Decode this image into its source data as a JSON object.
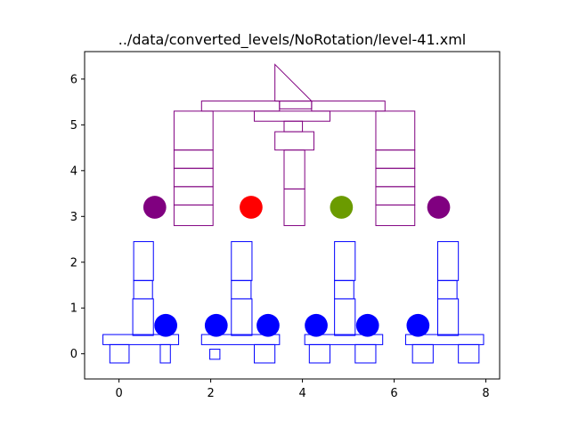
{
  "chart_data": {
    "type": "scatter",
    "title": "../data/converted_levels/NoRotation/level-41.xml",
    "xlabel": "",
    "ylabel": "",
    "xlim": [
      -0.75,
      8.3
    ],
    "ylim": [
      -0.55,
      6.6
    ],
    "grid": false,
    "x_ticks": [
      0,
      2,
      4,
      6,
      8
    ],
    "y_ticks": [
      0,
      1,
      2,
      3,
      4,
      5,
      6
    ],
    "colors": {
      "structure_top": "#800080",
      "structure_bottom": "#0000ff",
      "pig_purple": "#800080",
      "pig_red": "#ff0000",
      "pig_green": "#6b9b00",
      "pig_blue": "#0000ff"
    },
    "rectangles": [
      {
        "x": [
          1.2,
          2.05
        ],
        "y": [
          2.8,
          3.25
        ],
        "color": "purple"
      },
      {
        "x": [
          1.2,
          2.05
        ],
        "y": [
          3.25,
          3.65
        ],
        "color": "purple"
      },
      {
        "x": [
          1.2,
          2.05
        ],
        "y": [
          3.65,
          4.05
        ],
        "color": "purple"
      },
      {
        "x": [
          1.2,
          2.05
        ],
        "y": [
          4.05,
          4.45
        ],
        "color": "purple"
      },
      {
        "x": [
          1.2,
          2.05
        ],
        "y": [
          4.45,
          5.3
        ],
        "color": "purple"
      },
      {
        "x": [
          5.6,
          6.45
        ],
        "y": [
          2.8,
          3.25
        ],
        "color": "purple"
      },
      {
        "x": [
          5.6,
          6.45
        ],
        "y": [
          3.25,
          3.65
        ],
        "color": "purple"
      },
      {
        "x": [
          5.6,
          6.45
        ],
        "y": [
          3.65,
          4.05
        ],
        "color": "purple"
      },
      {
        "x": [
          5.6,
          6.45
        ],
        "y": [
          4.05,
          4.45
        ],
        "color": "purple"
      },
      {
        "x": [
          5.6,
          6.45
        ],
        "y": [
          4.45,
          5.3
        ],
        "color": "purple"
      },
      {
        "x": [
          1.8,
          3.5
        ],
        "y": [
          5.3,
          5.52
        ],
        "color": "purple"
      },
      {
        "x": [
          4.2,
          5.8
        ],
        "y": [
          5.3,
          5.52
        ],
        "color": "purple"
      },
      {
        "x": [
          3.5,
          4.2
        ],
        "y": [
          5.35,
          5.52
        ],
        "color": "purple"
      },
      {
        "x": [
          2.95,
          4.6
        ],
        "y": [
          5.08,
          5.3
        ],
        "color": "purple"
      },
      {
        "x": [
          3.6,
          4.0
        ],
        "y": [
          4.85,
          5.08
        ],
        "color": "purple"
      },
      {
        "x": [
          3.4,
          4.25
        ],
        "y": [
          4.45,
          4.85
        ],
        "color": "purple"
      },
      {
        "x": [
          3.6,
          4.05
        ],
        "y": [
          3.6,
          4.45
        ],
        "color": "purple"
      },
      {
        "x": [
          3.6,
          4.05
        ],
        "y": [
          2.8,
          3.6
        ],
        "color": "purple"
      },
      {
        "x": [
          -0.35,
          1.3
        ],
        "y": [
          0.2,
          0.42
        ],
        "color": "blue"
      },
      {
        "x": [
          -0.2,
          0.22
        ],
        "y": [
          -0.2,
          0.2
        ],
        "color": "blue"
      },
      {
        "x": [
          0.9,
          1.12
        ],
        "y": [
          -0.2,
          0.2
        ],
        "color": "blue"
      },
      {
        "x": [
          0.3,
          0.75
        ],
        "y": [
          0.4,
          1.2
        ],
        "color": "blue"
      },
      {
        "x": [
          0.32,
          0.73
        ],
        "y": [
          1.2,
          1.6
        ],
        "color": "blue"
      },
      {
        "x": [
          0.32,
          0.75
        ],
        "y": [
          1.6,
          2.45
        ],
        "color": "blue"
      },
      {
        "x": [
          1.8,
          3.5
        ],
        "y": [
          0.2,
          0.42
        ],
        "color": "blue"
      },
      {
        "x": [
          1.98,
          2.2
        ],
        "y": [
          -0.12,
          0.1
        ],
        "color": "blue"
      },
      {
        "x": [
          2.95,
          3.4
        ],
        "y": [
          -0.2,
          0.2
        ],
        "color": "blue"
      },
      {
        "x": [
          2.45,
          2.9
        ],
        "y": [
          0.4,
          1.2
        ],
        "color": "blue"
      },
      {
        "x": [
          2.45,
          2.88
        ],
        "y": [
          1.2,
          1.6
        ],
        "color": "blue"
      },
      {
        "x": [
          2.45,
          2.9
        ],
        "y": [
          1.6,
          2.45
        ],
        "color": "blue"
      },
      {
        "x": [
          4.05,
          5.75
        ],
        "y": [
          0.2,
          0.42
        ],
        "color": "blue"
      },
      {
        "x": [
          4.15,
          4.6
        ],
        "y": [
          -0.2,
          0.2
        ],
        "color": "blue"
      },
      {
        "x": [
          5.15,
          5.6
        ],
        "y": [
          -0.2,
          0.2
        ],
        "color": "blue"
      },
      {
        "x": [
          4.7,
          5.15
        ],
        "y": [
          0.4,
          1.2
        ],
        "color": "blue"
      },
      {
        "x": [
          4.7,
          5.12
        ],
        "y": [
          1.2,
          1.6
        ],
        "color": "blue"
      },
      {
        "x": [
          4.7,
          5.15
        ],
        "y": [
          1.6,
          2.45
        ],
        "color": "blue"
      },
      {
        "x": [
          6.25,
          7.95
        ],
        "y": [
          0.2,
          0.42
        ],
        "color": "blue"
      },
      {
        "x": [
          6.4,
          6.85
        ],
        "y": [
          -0.2,
          0.2
        ],
        "color": "blue"
      },
      {
        "x": [
          7.4,
          7.85
        ],
        "y": [
          -0.2,
          0.2
        ],
        "color": "blue"
      },
      {
        "x": [
          6.95,
          7.4
        ],
        "y": [
          0.4,
          1.2
        ],
        "color": "blue"
      },
      {
        "x": [
          6.95,
          7.37
        ],
        "y": [
          1.2,
          1.6
        ],
        "color": "blue"
      },
      {
        "x": [
          6.95,
          7.4
        ],
        "y": [
          1.6,
          2.45
        ],
        "color": "blue"
      }
    ],
    "triangle": {
      "points": [
        [
          3.4,
          5.52
        ],
        [
          3.4,
          6.32
        ],
        [
          4.2,
          5.52
        ]
      ],
      "color": "purple"
    },
    "circles": [
      {
        "x": 0.78,
        "y": 3.2,
        "color": "purple"
      },
      {
        "x": 2.88,
        "y": 3.2,
        "color": "red"
      },
      {
        "x": 4.85,
        "y": 3.2,
        "color": "green"
      },
      {
        "x": 6.97,
        "y": 3.2,
        "color": "purple"
      },
      {
        "x": 1.02,
        "y": 0.62,
        "color": "blue"
      },
      {
        "x": 2.12,
        "y": 0.62,
        "color": "blue"
      },
      {
        "x": 3.25,
        "y": 0.62,
        "color": "blue"
      },
      {
        "x": 4.3,
        "y": 0.62,
        "color": "blue"
      },
      {
        "x": 5.42,
        "y": 0.62,
        "color": "blue"
      },
      {
        "x": 6.52,
        "y": 0.62,
        "color": "blue"
      }
    ],
    "circle_radius": 0.25
  }
}
